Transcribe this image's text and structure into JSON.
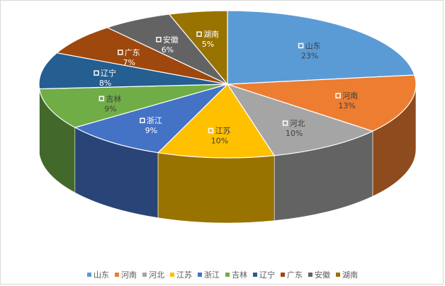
{
  "chart_data": {
    "type": "pie",
    "categories": [
      "山东",
      "河南",
      "河北",
      "江苏",
      "浙江",
      "吉林",
      "辽宁",
      "广东",
      "安徽",
      "湖南"
    ],
    "values": [
      23,
      13,
      10,
      10,
      9,
      9,
      8,
      7,
      6,
      5
    ],
    "value_labels": [
      "23%",
      "13%",
      "10%",
      "10%",
      "9%",
      "9%",
      "8%",
      "7%",
      "6%",
      "5%"
    ],
    "colors": [
      "#5B9BD5",
      "#ED7D31",
      "#A5A5A5",
      "#FFC000",
      "#4472C4",
      "#70AD47",
      "#255E91",
      "#9E480E",
      "#636363",
      "#997300"
    ],
    "style": "3d",
    "legend_position": "bottom",
    "title": ""
  }
}
